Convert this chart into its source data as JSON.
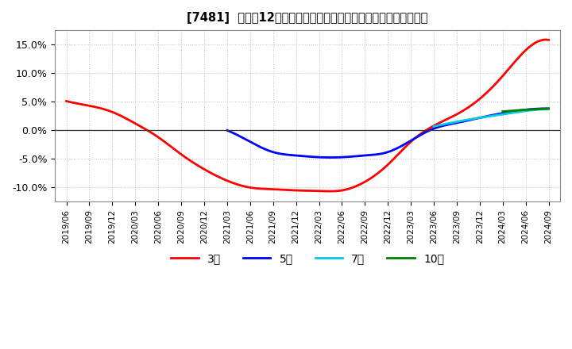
{
  "title": "[7481]  売上高12か月移動合計の対前年同期増減率の平均値の推移",
  "background_color": "#ffffff",
  "plot_bg_color": "#ffffff",
  "grid_color": "#bbbbbb",
  "ylim": [
    -0.125,
    0.175
  ],
  "yticks": [
    -0.1,
    -0.05,
    0.0,
    0.05,
    0.1,
    0.15
  ],
  "series": {
    "3year": {
      "color": "#ff0000",
      "label": "3年",
      "points": [
        [
          "2019/06",
          0.051
        ],
        [
          "2019/09",
          0.043
        ],
        [
          "2019/12",
          0.032
        ],
        [
          "2020/03",
          0.012
        ],
        [
          "2020/06",
          -0.012
        ],
        [
          "2020/09",
          -0.042
        ],
        [
          "2020/12",
          -0.068
        ],
        [
          "2021/03",
          -0.088
        ],
        [
          "2021/06",
          -0.1
        ],
        [
          "2021/09",
          -0.103
        ],
        [
          "2021/12",
          -0.105
        ],
        [
          "2022/03",
          -0.106
        ],
        [
          "2022/06",
          -0.105
        ],
        [
          "2022/09",
          -0.09
        ],
        [
          "2022/12",
          -0.06
        ],
        [
          "2023/03",
          -0.02
        ],
        [
          "2023/06",
          0.008
        ],
        [
          "2023/09",
          0.028
        ],
        [
          "2023/12",
          0.055
        ],
        [
          "2024/03",
          0.095
        ],
        [
          "2024/06",
          0.14
        ],
        [
          "2024/09",
          0.158
        ]
      ]
    },
    "5year": {
      "color": "#0000ff",
      "label": "5年",
      "points": [
        [
          "2021/03",
          0.0
        ],
        [
          "2021/06",
          -0.02
        ],
        [
          "2021/09",
          -0.038
        ],
        [
          "2021/12",
          -0.044
        ],
        [
          "2022/03",
          -0.047
        ],
        [
          "2022/06",
          -0.047
        ],
        [
          "2022/09",
          -0.044
        ],
        [
          "2022/12",
          -0.038
        ],
        [
          "2023/03",
          -0.018
        ],
        [
          "2023/06",
          0.003
        ],
        [
          "2023/09",
          0.013
        ],
        [
          "2023/12",
          0.022
        ],
        [
          "2024/03",
          0.03
        ],
        [
          "2024/06",
          0.036
        ],
        [
          "2024/09",
          0.038
        ]
      ]
    },
    "7year": {
      "color": "#00ccdd",
      "label": "7年",
      "points": [
        [
          "2023/06",
          0.007
        ],
        [
          "2023/09",
          0.015
        ],
        [
          "2023/12",
          0.022
        ],
        [
          "2024/03",
          0.028
        ],
        [
          "2024/06",
          0.034
        ],
        [
          "2024/09",
          0.037
        ]
      ]
    },
    "10year": {
      "color": "#008000",
      "label": "10年",
      "points": [
        [
          "2024/03",
          0.033
        ],
        [
          "2024/06",
          0.036
        ],
        [
          "2024/09",
          0.038
        ]
      ]
    }
  },
  "x_tick_labels": [
    "2019/06",
    "2019/09",
    "2019/12",
    "2020/03",
    "2020/06",
    "2020/09",
    "2020/12",
    "2021/03",
    "2021/06",
    "2021/09",
    "2021/12",
    "2022/03",
    "2022/06",
    "2022/09",
    "2022/12",
    "2023/03",
    "2023/06",
    "2023/09",
    "2023/12",
    "2024/03",
    "2024/06",
    "2024/09"
  ]
}
